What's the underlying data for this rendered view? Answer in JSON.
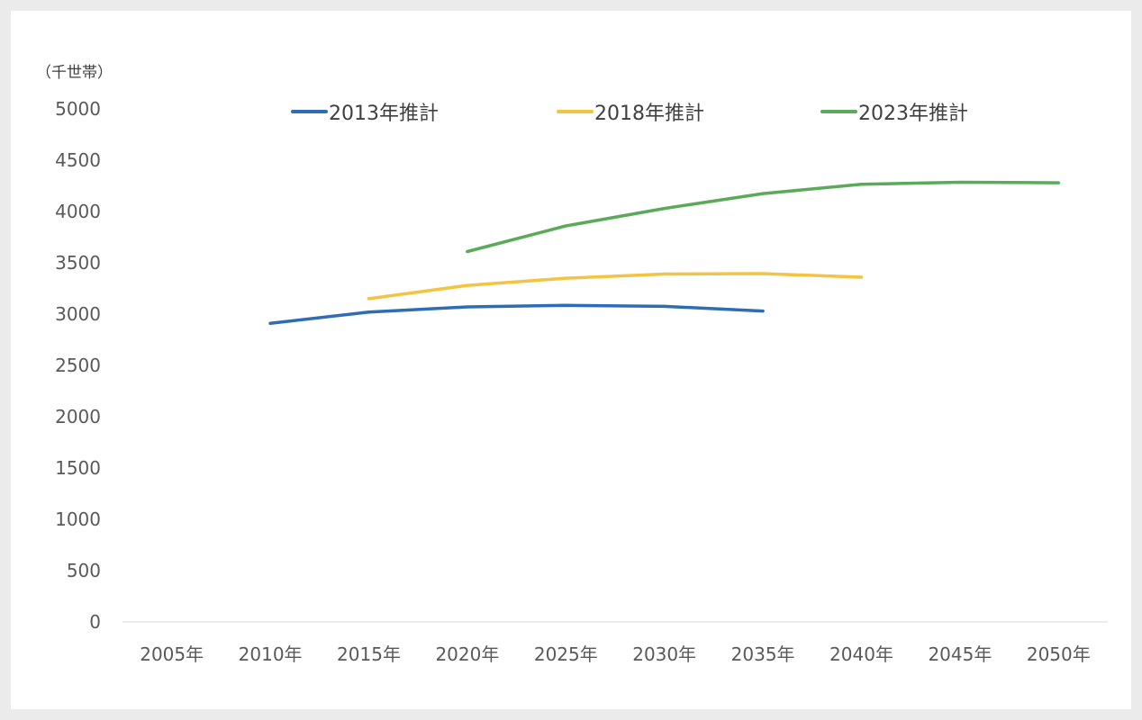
{
  "chart_data": {
    "type": "line",
    "unit_label": "（千世帯）",
    "categories": [
      "2005年",
      "2010年",
      "2015年",
      "2020年",
      "2025年",
      "2030年",
      "2035年",
      "2040年",
      "2045年",
      "2050年"
    ],
    "ylim": [
      0,
      5000
    ],
    "yticks": [
      0,
      500,
      1000,
      1500,
      2000,
      2500,
      3000,
      3500,
      4000,
      4500,
      5000
    ],
    "grid": false,
    "legend_position": "top",
    "series": [
      {
        "name": "2013年推計",
        "color": "#2e6db4",
        "values": [
          null,
          2910,
          3020,
          3070,
          3085,
          3075,
          3030,
          null,
          null,
          null
        ]
      },
      {
        "name": "2018年推計",
        "color": "#f5c342",
        "values": [
          null,
          null,
          3150,
          3280,
          3350,
          3390,
          3395,
          3360,
          null,
          null
        ]
      },
      {
        "name": "2023年推計",
        "color": "#5aaa59",
        "values": [
          null,
          null,
          null,
          3610,
          3860,
          4030,
          4175,
          4265,
          4285,
          4280
        ]
      }
    ]
  }
}
